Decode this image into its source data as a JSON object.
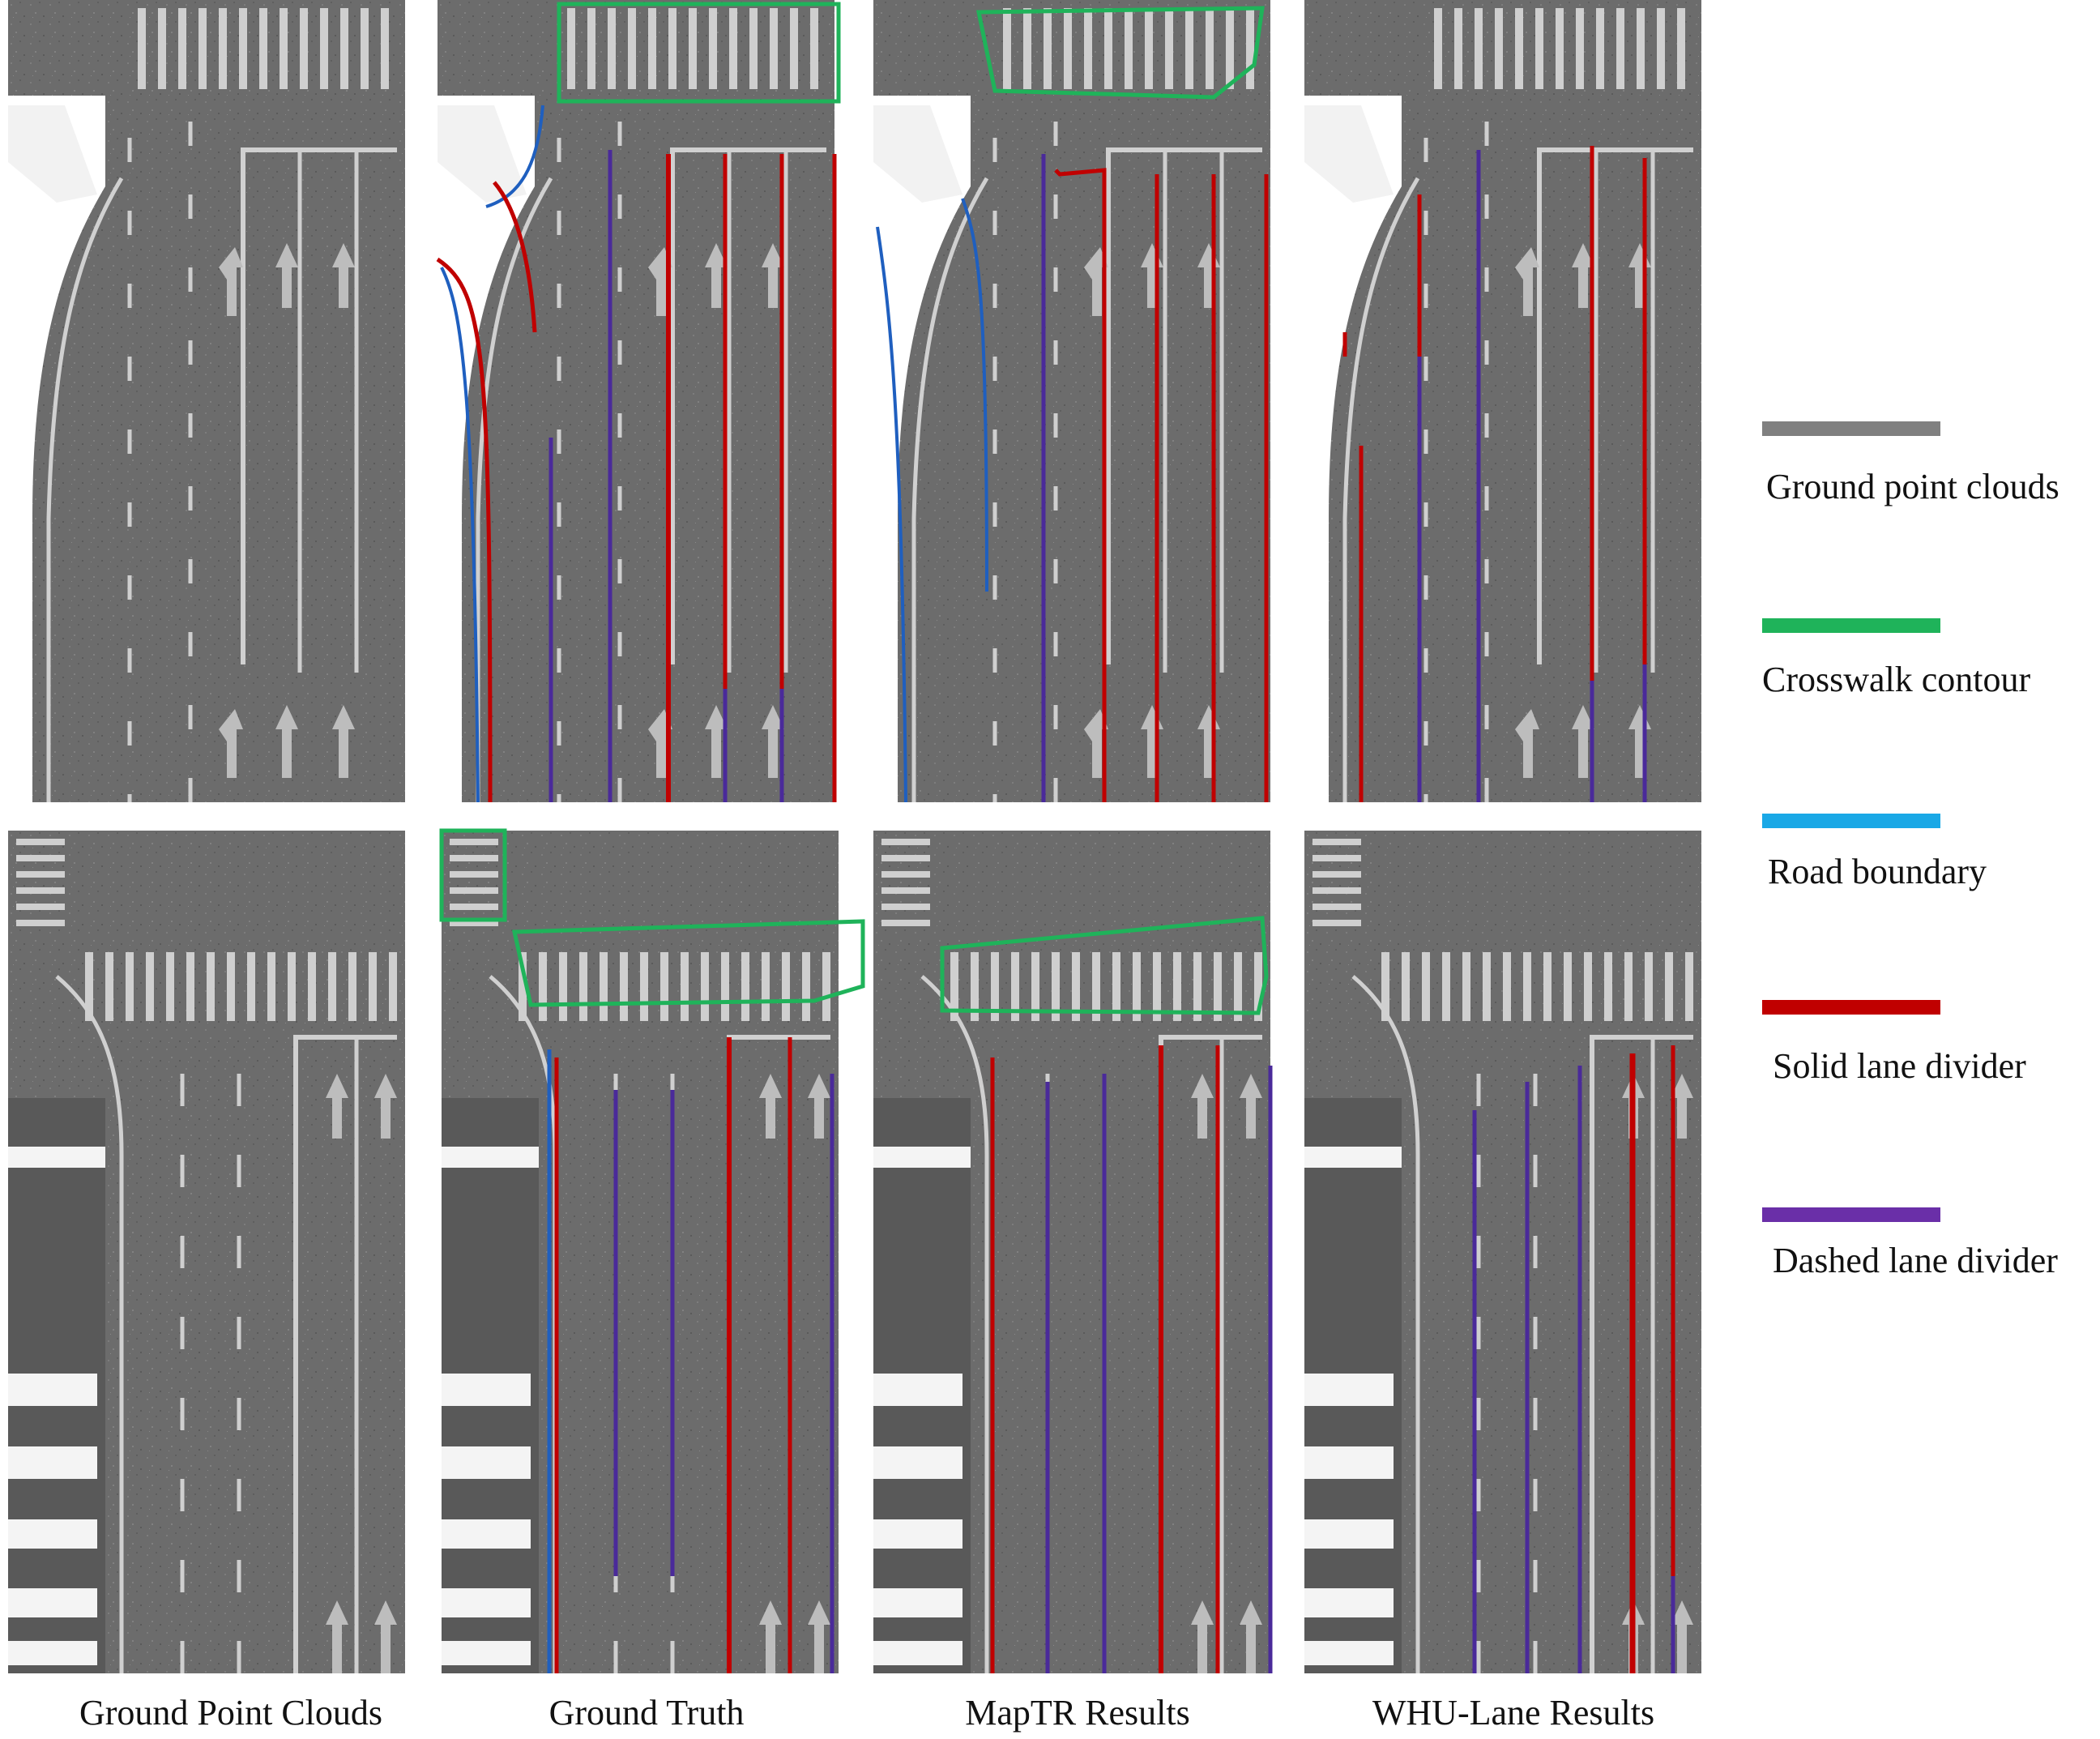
{
  "column_labels": [
    "Ground Point Clouds",
    "Ground Truth",
    "MapTR Results",
    "WHU-Lane Results"
  ],
  "legend": [
    {
      "label": "Ground point clouds",
      "color": "#808080",
      "icon": "gray-line-icon"
    },
    {
      "label": "Crosswalk contour",
      "color": "#1fb35a",
      "icon": "green-line-icon"
    },
    {
      "label": "Road boundary",
      "color": "#1aa8e6",
      "icon": "blue-line-icon"
    },
    {
      "label": "Solid lane divider",
      "color": "#c00000",
      "icon": "red-line-icon"
    },
    {
      "label": "Dashed lane divider",
      "color": "#6a2fa8",
      "icon": "purple-line-icon"
    }
  ],
  "colors": {
    "road": "#6e6e6e",
    "marking": "#d9d9d9",
    "crosswalk": "#1fb35a",
    "boundary": "#1f5fbf",
    "solid": "#c00000",
    "dashed": "#4a2a9a"
  }
}
